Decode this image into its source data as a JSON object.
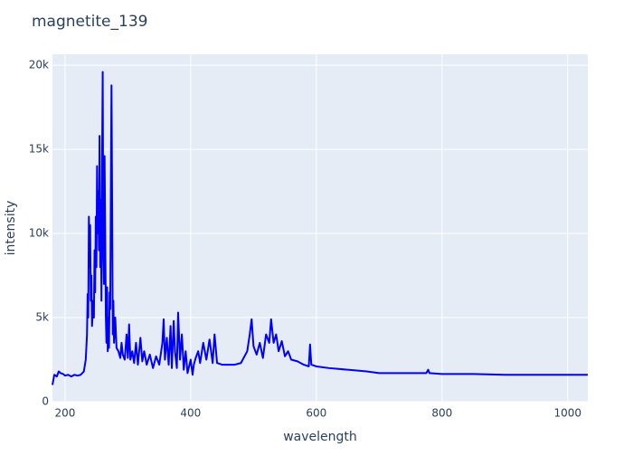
{
  "chart_data": {
    "type": "line",
    "title": "magnetite_139",
    "x_label": "wavelength",
    "y_label": "intensity",
    "series": [
      {
        "color": "#0000ff",
        "x": [
          180,
          183,
          187,
          190,
          193,
          197,
          200,
          205,
          210,
          215,
          220,
          225,
          230,
          233,
          235,
          236,
          237,
          238,
          239,
          240,
          241,
          242,
          243,
          245,
          246,
          247,
          248,
          249,
          250,
          251,
          252,
          253,
          254,
          255,
          256,
          257,
          258,
          259,
          260,
          261,
          262,
          263,
          264,
          265,
          266,
          267,
          268,
          269,
          270,
          271,
          272,
          273,
          274,
          275,
          276,
          277,
          278,
          280,
          282,
          285,
          288,
          290,
          292,
          295,
          298,
          300,
          302,
          304,
          307,
          310,
          313,
          316,
          320,
          323,
          326,
          330,
          335,
          340,
          345,
          350,
          355,
          357,
          359,
          362,
          365,
          368,
          370,
          373,
          375,
          378,
          380,
          383,
          386,
          389,
          392,
          395,
          400,
          403,
          405,
          408,
          412,
          415,
          420,
          425,
          430,
          435,
          438,
          442,
          450,
          460,
          470,
          480,
          490,
          494,
          497,
          500,
          505,
          510,
          515,
          520,
          525,
          528,
          532,
          536,
          540,
          545,
          550,
          555,
          560,
          570,
          580,
          588,
          590,
          592,
          600,
          620,
          650,
          680,
          700,
          750,
          775,
          778,
          780,
          800,
          850,
          900,
          950,
          1000,
          1032
        ],
        "values": [
          1000,
          1600,
          1500,
          1800,
          1700,
          1650,
          1550,
          1600,
          1500,
          1600,
          1550,
          1600,
          1800,
          2500,
          4000,
          6400,
          5000,
          11000,
          8000,
          10500,
          6000,
          7500,
          4500,
          6000,
          5000,
          9000,
          6500,
          11000,
          8000,
          14000,
          10000,
          12500,
          9000,
          15800,
          8000,
          12000,
          6000,
          14500,
          19600,
          9000,
          7000,
          14600,
          10000,
          5000,
          3500,
          6800,
          3000,
          5000,
          3200,
          6500,
          5500,
          13000,
          18800,
          12000,
          4000,
          6000,
          3500,
          5000,
          3200,
          3000,
          2600,
          3500,
          2800,
          2500,
          4000,
          2600,
          4600,
          2500,
          3000,
          2300,
          3500,
          2200,
          3800,
          2400,
          3000,
          2200,
          2800,
          2000,
          2700,
          2200,
          3500,
          4900,
          2500,
          3800,
          2200,
          4500,
          2000,
          4800,
          3000,
          2000,
          5300,
          2500,
          4000,
          1900,
          3000,
          1700,
          2500,
          1600,
          2200,
          2600,
          3000,
          2300,
          3500,
          2500,
          3700,
          2300,
          4000,
          2300,
          2200,
          2200,
          2200,
          2300,
          3000,
          4000,
          4900,
          3300,
          2800,
          3500,
          2600,
          4000,
          3500,
          4900,
          3500,
          4000,
          3000,
          3600,
          2700,
          3000,
          2500,
          2400,
          2200,
          2100,
          3400,
          2200,
          2100,
          2000,
          1900,
          1800,
          1700,
          1700,
          1700,
          1900,
          1700,
          1650,
          1650,
          1600,
          1600,
          1600,
          1600
        ]
      }
    ],
    "xlim": [
      180,
      1032
    ],
    "ylim": [
      0,
      20650
    ],
    "xticks": [
      200,
      400,
      600,
      800,
      1000
    ],
    "yticks": [
      0,
      {
        "value": 5000,
        "label": "5k"
      },
      {
        "value": 10000,
        "label": "10k"
      },
      {
        "value": 15000,
        "label": "15k"
      },
      {
        "value": 20000,
        "label": "20k"
      }
    ],
    "grid": true,
    "background": "#e5ecf6"
  }
}
